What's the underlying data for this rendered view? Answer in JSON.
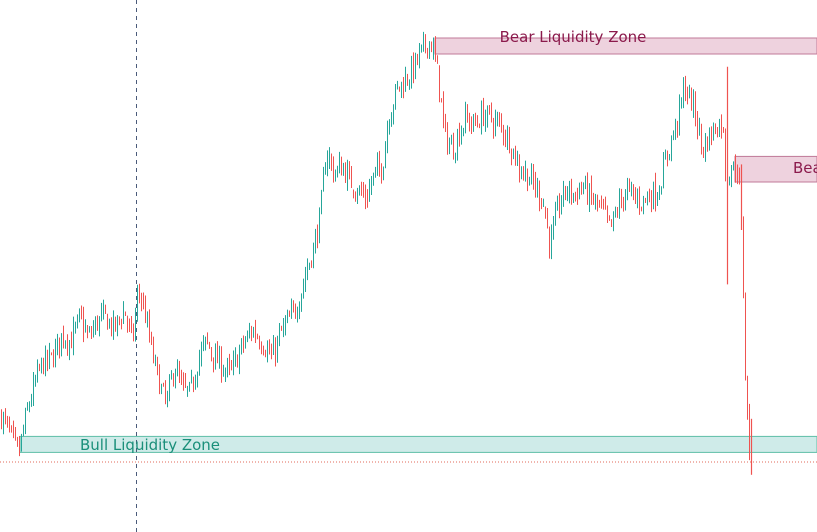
{
  "chart_data": {
    "type": "candlestick",
    "title": "",
    "xlabel": "",
    "ylabel": "",
    "grid": false,
    "legend": "none",
    "colors": {
      "up": "#26a69a",
      "down": "#ef5350",
      "bull_zone": "#26a69a",
      "bear_zone": "#b0306a"
    },
    "zones": [
      {
        "name": "bear-zone-top",
        "kind": "bear",
        "label": "Bear Liquidity Zone",
        "y_from": 100,
        "y_to": 110
      },
      {
        "name": "bear-zone-right",
        "kind": "bear",
        "label": "Bea",
        "y_from": 20,
        "y_to": 36
      },
      {
        "name": "bull-zone",
        "kind": "bull",
        "label": "Bull Liquidity Zone",
        "y_from": -149,
        "y_to": -139
      }
    ],
    "price_level": {
      "name": "low-dotted-line",
      "y": -155
    },
    "anchors": [
      [
        0,
        -125
      ],
      [
        8,
        -135
      ],
      [
        18,
        -150
      ],
      [
        28,
        -120
      ],
      [
        40,
        -95
      ],
      [
        52,
        -90
      ],
      [
        62,
        -75
      ],
      [
        70,
        -80
      ],
      [
        80,
        -65
      ],
      [
        88,
        -78
      ],
      [
        96,
        -68
      ],
      [
        104,
        -64
      ],
      [
        114,
        -72
      ],
      [
        124,
        -60
      ],
      [
        132,
        -80
      ],
      [
        138,
        -47
      ],
      [
        144,
        -60
      ],
      [
        152,
        -88
      ],
      [
        160,
        -108
      ],
      [
        166,
        -119
      ],
      [
        174,
        -95
      ],
      [
        182,
        -110
      ],
      [
        190,
        -112
      ],
      [
        198,
        -90
      ],
      [
        206,
        -80
      ],
      [
        214,
        -90
      ],
      [
        222,
        -95
      ],
      [
        230,
        -100
      ],
      [
        240,
        -85
      ],
      [
        252,
        -72
      ],
      [
        262,
        -80
      ],
      [
        272,
        -90
      ],
      [
        280,
        -75
      ],
      [
        290,
        -65
      ],
      [
        298,
        -55
      ],
      [
        306,
        -35
      ],
      [
        314,
        -20
      ],
      [
        320,
        0
      ],
      [
        326,
        40
      ],
      [
        334,
        25
      ],
      [
        342,
        30
      ],
      [
        350,
        20
      ],
      [
        358,
        15
      ],
      [
        366,
        10
      ],
      [
        374,
        25
      ],
      [
        382,
        30
      ],
      [
        388,
        60
      ],
      [
        396,
        77
      ],
      [
        404,
        83
      ],
      [
        412,
        90
      ],
      [
        420,
        100
      ],
      [
        428,
        108
      ],
      [
        432,
        105
      ],
      [
        438,
        85
      ],
      [
        444,
        50
      ],
      [
        452,
        40
      ],
      [
        458,
        50
      ],
      [
        466,
        60
      ],
      [
        474,
        55
      ],
      [
        482,
        62
      ],
      [
        490,
        60
      ],
      [
        500,
        55
      ],
      [
        510,
        45
      ],
      [
        518,
        30
      ],
      [
        526,
        25
      ],
      [
        534,
        18
      ],
      [
        542,
        10
      ],
      [
        550,
        -20
      ],
      [
        558,
        5
      ],
      [
        566,
        15
      ],
      [
        574,
        12
      ],
      [
        582,
        18
      ],
      [
        590,
        10
      ],
      [
        598,
        5
      ],
      [
        604,
        0
      ],
      [
        610,
        -10
      ],
      [
        618,
        5
      ],
      [
        626,
        15
      ],
      [
        634,
        10
      ],
      [
        642,
        8
      ],
      [
        650,
        12
      ],
      [
        658,
        15
      ],
      [
        664,
        30
      ],
      [
        670,
        45
      ],
      [
        676,
        55
      ],
      [
        684,
        80
      ],
      [
        690,
        72
      ],
      [
        696,
        60
      ],
      [
        702,
        40
      ],
      [
        710,
        50
      ],
      [
        716,
        55
      ],
      [
        722,
        58
      ],
      [
        726,
        20
      ],
      [
        730,
        30
      ],
      [
        734,
        28
      ],
      [
        738,
        30
      ],
      [
        742,
        -20
      ],
      [
        745,
        -100
      ],
      [
        748,
        -140
      ],
      [
        752,
        -158
      ]
    ],
    "spikes": [
      {
        "at": 727,
        "high": 92,
        "low": -44,
        "dir": "down"
      },
      {
        "at": 741,
        "high": 31,
        "low": -10,
        "dir": "down"
      },
      {
        "at": 751,
        "high": -128,
        "low": -163,
        "dir": "down"
      }
    ],
    "crosshair_vertical_at": 136,
    "y_mapping": {
      "pixel_per_unit": 1.6,
      "zero_pixel": 214
    }
  }
}
